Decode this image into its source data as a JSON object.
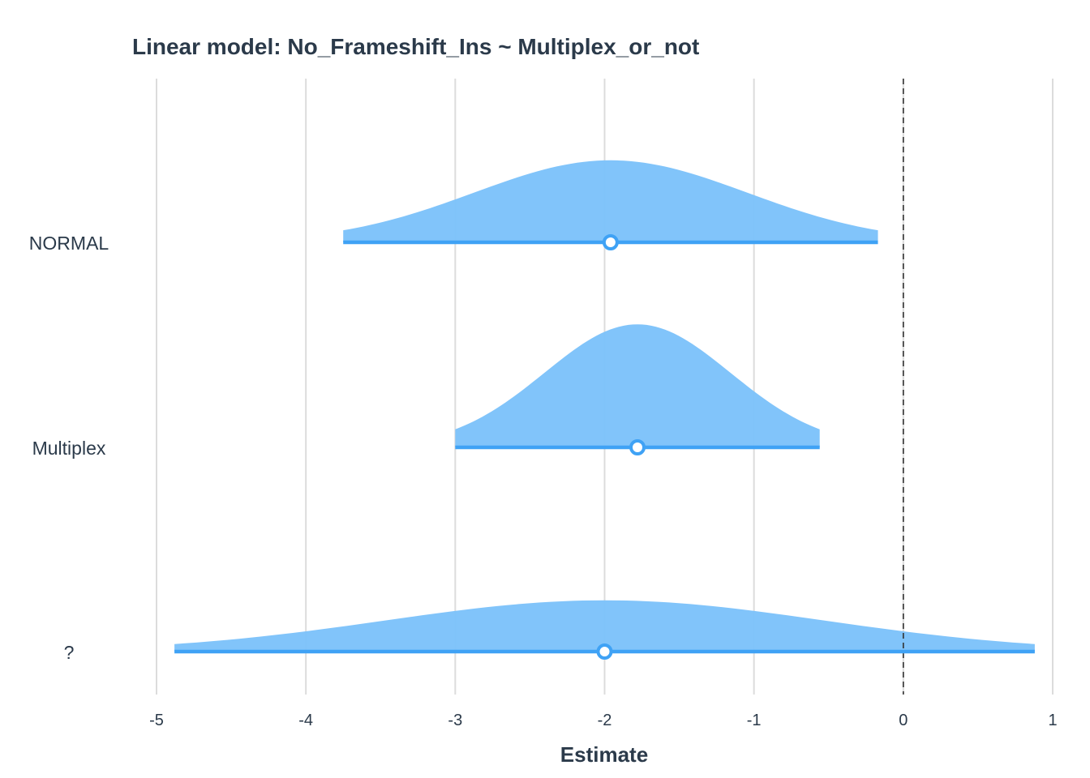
{
  "chart_data": {
    "type": "density-interval",
    "title": "Linear model: No_Frameshift_Ins ~ Multiplex_or_not",
    "xlabel": "Estimate",
    "ylabel": "",
    "xlim": [
      -5,
      1
    ],
    "x_ticks": [
      "-5",
      "-4",
      "-3",
      "-2",
      "-1",
      "0",
      "1"
    ],
    "reference_line": 0,
    "grid": "vertical",
    "colors": {
      "fill": "#7ac1fa",
      "line": "#3fa2f5",
      "text": "#2b3a4a"
    },
    "categories": [
      {
        "label": "NORMAL",
        "estimate": -1.96,
        "lower": -3.75,
        "upper": -0.17,
        "peak": 0.4
      },
      {
        "label": "Multiplex",
        "estimate": -1.78,
        "lower": -3.0,
        "upper": -0.56,
        "peak": 0.6
      },
      {
        "label": "?",
        "estimate": -2.0,
        "lower": -4.88,
        "upper": 0.88,
        "peak": 0.25
      }
    ]
  }
}
